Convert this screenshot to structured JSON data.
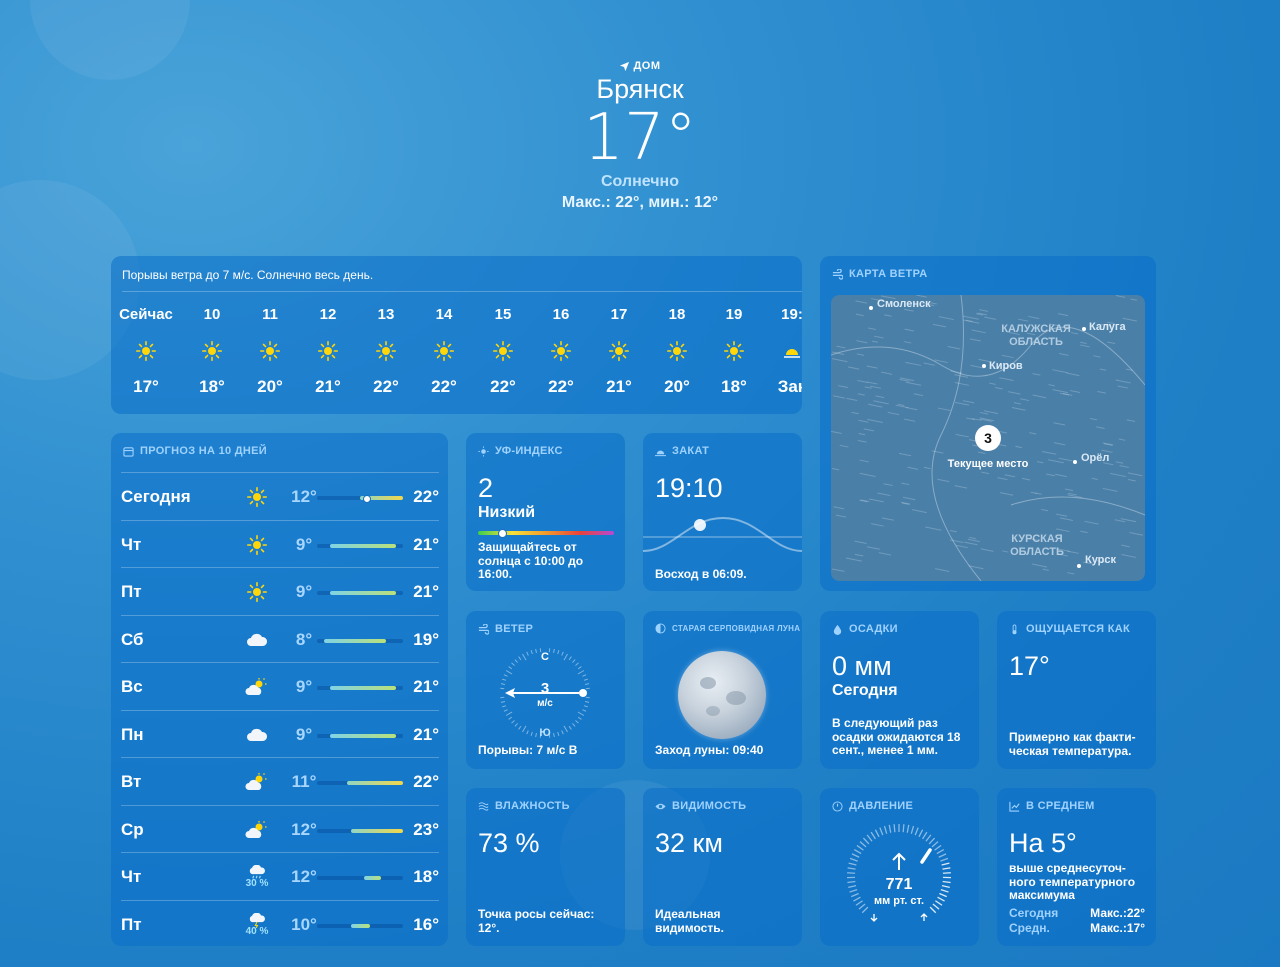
{
  "header": {
    "location_label": "ДОМ",
    "city": "Брянск",
    "temperature": "17°",
    "condition": "Солнечно",
    "hilo": "Макс.: 22°, мин.: 12°"
  },
  "hourly": {
    "summary": "Порывы ветра до 7 м/с. Солнечно весь день.",
    "items": [
      {
        "time": "Сейчас",
        "icon": "sun-icon",
        "temp": "17°"
      },
      {
        "time": "10",
        "icon": "sun-icon",
        "temp": "18°"
      },
      {
        "time": "11",
        "icon": "sun-icon",
        "temp": "20°"
      },
      {
        "time": "12",
        "icon": "sun-icon",
        "temp": "21°"
      },
      {
        "time": "13",
        "icon": "sun-icon",
        "temp": "22°"
      },
      {
        "time": "14",
        "icon": "sun-icon",
        "temp": "22°"
      },
      {
        "time": "15",
        "icon": "sun-icon",
        "temp": "22°"
      },
      {
        "time": "16",
        "icon": "sun-icon",
        "temp": "22°"
      },
      {
        "time": "17",
        "icon": "sun-icon",
        "temp": "21°"
      },
      {
        "time": "18",
        "icon": "sun-icon",
        "temp": "20°"
      },
      {
        "time": "19",
        "icon": "sun-icon",
        "temp": "18°"
      },
      {
        "time": "19:",
        "icon": "sunset-icon",
        "temp": "Зак"
      }
    ]
  },
  "forecast": {
    "title": "ПРОГНОЗ НА 10 ДНЕЙ",
    "days": [
      {
        "name": "Сегодня",
        "icon": "sun-icon",
        "precip": "",
        "low": "12°",
        "high": "22°",
        "bar_start": 0.5,
        "bar_end": 1.0,
        "current": 0.58,
        "color": "yellow"
      },
      {
        "name": "Чт",
        "icon": "sun-icon",
        "precip": "",
        "low": "9°",
        "high": "21°",
        "bar_start": 0.15,
        "bar_end": 0.92,
        "color": "cyan"
      },
      {
        "name": "Пт",
        "icon": "sun-icon",
        "precip": "",
        "low": "9°",
        "high": "21°",
        "bar_start": 0.15,
        "bar_end": 0.92,
        "color": "cyan"
      },
      {
        "name": "Сб",
        "icon": "cloud-icon",
        "precip": "",
        "low": "8°",
        "high": "19°",
        "bar_start": 0.08,
        "bar_end": 0.8,
        "color": "cyan"
      },
      {
        "name": "Вс",
        "icon": "partly-cloudy-icon",
        "precip": "",
        "low": "9°",
        "high": "21°",
        "bar_start": 0.15,
        "bar_end": 0.92,
        "color": "cyan"
      },
      {
        "name": "Пн",
        "icon": "cloud-icon",
        "precip": "",
        "low": "9°",
        "high": "21°",
        "bar_start": 0.15,
        "bar_end": 0.92,
        "color": "cyan"
      },
      {
        "name": "Вт",
        "icon": "partly-cloudy-icon",
        "precip": "",
        "low": "11°",
        "high": "22°",
        "bar_start": 0.35,
        "bar_end": 1.0,
        "color": "yellow"
      },
      {
        "name": "Ср",
        "icon": "partly-cloudy-icon",
        "precip": "",
        "low": "12°",
        "high": "23°",
        "bar_start": 0.4,
        "bar_end": 1.0,
        "color": "yellow"
      },
      {
        "name": "Чт",
        "icon": "rain-icon",
        "precip": "30 %",
        "low": "12°",
        "high": "18°",
        "bar_start": 0.55,
        "bar_end": 0.75,
        "color": "cyan"
      },
      {
        "name": "Пт",
        "icon": "thunder-icon",
        "precip": "40 %",
        "low": "10°",
        "high": "16°",
        "bar_start": 0.4,
        "bar_end": 0.62,
        "color": "cyan"
      }
    ]
  },
  "uv": {
    "title": "УФ-ИНДЕКС",
    "value": "2",
    "level": "Низкий",
    "level_fraction": 0.18,
    "desc": "Защищайтесь от солнца с 10:00 до 16:00."
  },
  "sunset": {
    "title": "ЗАКАТ",
    "time": "19:10",
    "sunrise": "Восход в 06:09."
  },
  "wind_map": {
    "title": "КАРТА ВЕТРА",
    "cities": [
      "Смоленск",
      "Калуга",
      "Киров",
      "Орёл",
      "Курск"
    ],
    "regions": [
      "КАЛУЖСКАЯ",
      "ОБЛАСТЬ",
      "КУРСКАЯ",
      "ОБЛАСТЬ"
    ],
    "current_value": "3",
    "current_label": "Текущее место"
  },
  "wind": {
    "title": "ВЕТЕР",
    "north": "С",
    "south": "Ю",
    "speed": "3",
    "unit": "м/с",
    "gusts": "Порывы: 7 м/с В"
  },
  "moon": {
    "title": "СТАРАЯ СЕРПОВИДНАЯ ЛУНА",
    "moonset": "Заход луны: 09:40"
  },
  "precip": {
    "title": "ОСАДКИ",
    "value": "0 мм",
    "period": "Сегодня",
    "desc": "В следующий раз осадки ожидаются 18 сент., менее 1 мм."
  },
  "feels": {
    "title": "ОЩУЩАЕТСЯ КАК",
    "value": "17°",
    "desc": "Примерно как факти-ческая температура."
  },
  "humidity": {
    "title": "ВЛАЖНОСТЬ",
    "value": "73 %",
    "desc": "Точка росы сейчас: 12°."
  },
  "visibility": {
    "title": "ВИДИМОСТЬ",
    "value": "32 км",
    "desc": "Идеальная видимость."
  },
  "pressure": {
    "title": "ДАВЛЕНИЕ",
    "value": "771",
    "unit": "мм рт. ст."
  },
  "average": {
    "title": "В СРЕДНЕМ",
    "value": "На 5°",
    "desc": "выше среднесуточ-ного температурного максимума",
    "rows": [
      {
        "label": "Сегодня",
        "value": "Макс.:22°"
      },
      {
        "label": "Средн.",
        "value": "Макс.:17°"
      }
    ]
  }
}
